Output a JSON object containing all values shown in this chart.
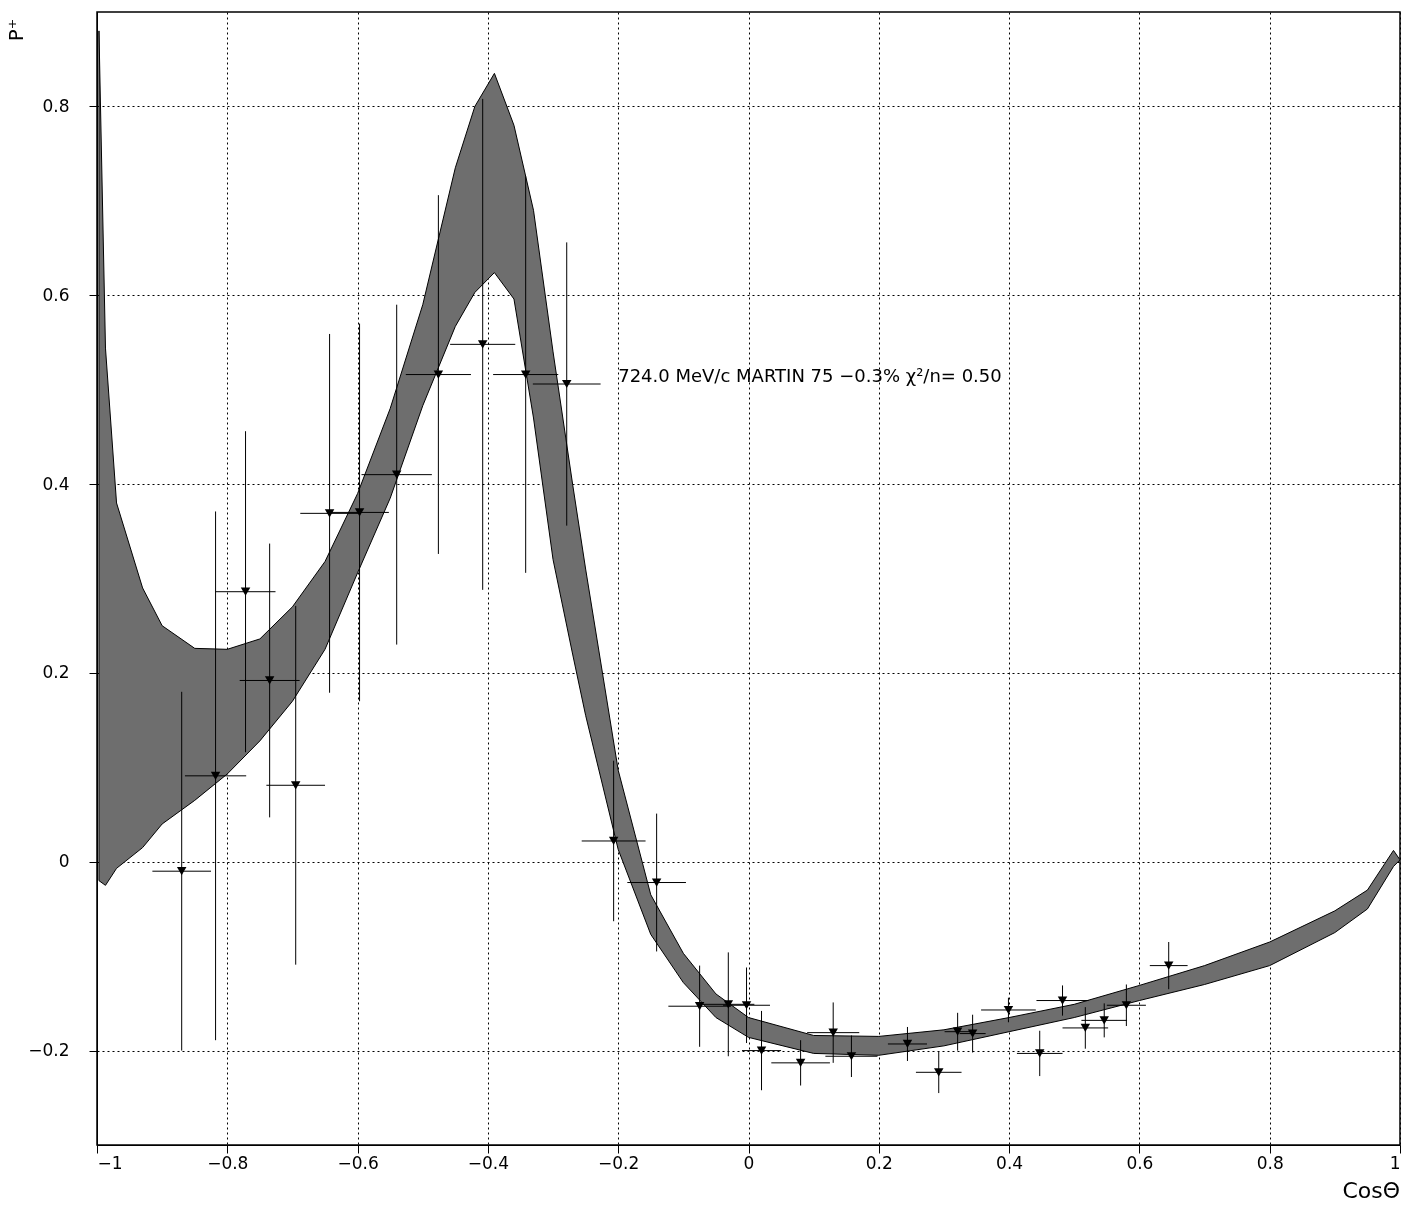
{
  "chart_data": {
    "type": "area",
    "xlabel": "CosΘ",
    "ylabel": "P⁺",
    "annotations": [
      "724.0 MeV/c        MARTIN 75   −0.3%  χ²/n=  0.50"
    ],
    "xlim": [
      -1,
      1
    ],
    "xticks": [
      -1,
      -0.8,
      -0.6,
      -0.4,
      -0.2,
      0,
      0.2,
      0.4,
      0.6,
      0.8,
      1
    ],
    "ylim": [
      -0.3,
      0.9
    ],
    "yticks": [
      -0.2,
      0,
      0.2,
      0.4,
      0.6,
      0.8
    ],
    "grid": true,
    "marker": "triangle",
    "series": [
      {
        "color": "#6e6e6e",
        "values": [
          null,
          null,
          null,
          null,
          null,
          null,
          null,
          null,
          null,
          null,
          null,
          null,
          null,
          null,
          null,
          null,
          null,
          null,
          null,
          null,
          null,
          null,
          null,
          null,
          null,
          null,
          null,
          null,
          null,
          null,
          null,
          null,
          null,
          null,
          null,
          null,
          null,
          null
        ],
        "x": [
          -0.997,
          -0.987,
          -0.97,
          -0.93,
          -0.9,
          -0.85,
          -0.8,
          -0.75,
          -0.7,
          -0.65,
          -0.6,
          -0.55,
          -0.5,
          -0.45,
          -0.42,
          -0.39,
          -0.36,
          -0.33,
          -0.3,
          -0.27,
          -0.25,
          -0.2,
          -0.15,
          -0.1,
          -0.05,
          0,
          0.1,
          0.2,
          0.3,
          0.4,
          0.5,
          0.6,
          0.7,
          0.8,
          0.9,
          0.95,
          0.99,
          1
        ],
        "lower": [
          -0.02,
          -0.025,
          -0.007,
          0.015,
          0.04,
          0.065,
          0.093,
          0.128,
          0.17,
          0.225,
          0.306,
          0.385,
          0.483,
          0.567,
          0.603,
          0.624,
          0.596,
          0.47,
          0.32,
          0.22,
          0.155,
          0.013,
          -0.077,
          -0.128,
          -0.165,
          -0.186,
          -0.203,
          -0.205,
          -0.195,
          -0.18,
          -0.165,
          -0.147,
          -0.13,
          -0.11,
          -0.075,
          -0.05,
          -0.005,
          0.002
        ],
        "upper": [
          0.88,
          0.544,
          0.38,
          0.29,
          0.25,
          0.226,
          0.225,
          0.236,
          0.27,
          0.318,
          0.39,
          0.48,
          0.59,
          0.735,
          0.8,
          0.835,
          0.78,
          0.69,
          0.54,
          0.4,
          0.31,
          0.097,
          -0.035,
          -0.097,
          -0.14,
          -0.165,
          -0.184,
          -0.185,
          -0.178,
          -0.165,
          -0.151,
          -0.131,
          -0.11,
          -0.085,
          -0.052,
          -0.03,
          0.012,
          0.002
        ]
      },
      {
        "type": "scatter",
        "color": "#000000",
        "x": [
          -0.87,
          -0.818,
          -0.772,
          -0.735,
          -0.695,
          -0.643,
          -0.597,
          -0.54,
          -0.476,
          -0.408,
          -0.342,
          -0.279,
          -0.207,
          -0.141,
          -0.075,
          -0.031,
          -0.003,
          0.02,
          0.08,
          0.13,
          0.158,
          0.244,
          0.292,
          0.321,
          0.344,
          0.399,
          0.447,
          0.482,
          0.517,
          0.546,
          0.58,
          0.645
        ],
        "values": [
          -0.01,
          0.091,
          0.286,
          0.192,
          0.081,
          0.369,
          0.37,
          0.41,
          0.516,
          0.548,
          0.516,
          0.506,
          0.022,
          -0.022,
          -0.153,
          -0.151,
          -0.152,
          -0.2,
          -0.213,
          -0.181,
          -0.206,
          -0.193,
          -0.223,
          -0.18,
          -0.182,
          -0.157,
          -0.203,
          -0.147,
          -0.176,
          -0.168,
          -0.152,
          -0.11
        ],
        "errors": [
          0.19,
          0.28,
          0.17,
          0.145,
          0.19,
          0.19,
          0.2,
          0.18,
          0.19,
          0.26,
          0.21,
          0.15,
          0.085,
          0.073,
          0.043,
          0.055,
          0.04,
          0.042,
          0.024,
          0.032,
          0.022,
          0.018,
          0.022,
          0.02,
          0.02,
          0.013,
          0.024,
          0.016,
          0.022,
          0.018,
          0.022,
          0.025
        ],
        "xerrors": [
          0.045,
          0.047,
          0.046,
          0.046,
          0.045,
          0.045,
          0.045,
          0.054,
          0.05,
          0.05,
          0.05,
          0.052,
          0.049,
          0.045,
          0.048,
          0.04,
          0.036,
          0.03,
          0.045,
          0.04,
          0.04,
          0.03,
          0.035,
          0.02,
          0.02,
          0.042,
          0.035,
          0.04,
          0.035,
          0.035,
          0.03,
          0.029
        ]
      }
    ]
  }
}
